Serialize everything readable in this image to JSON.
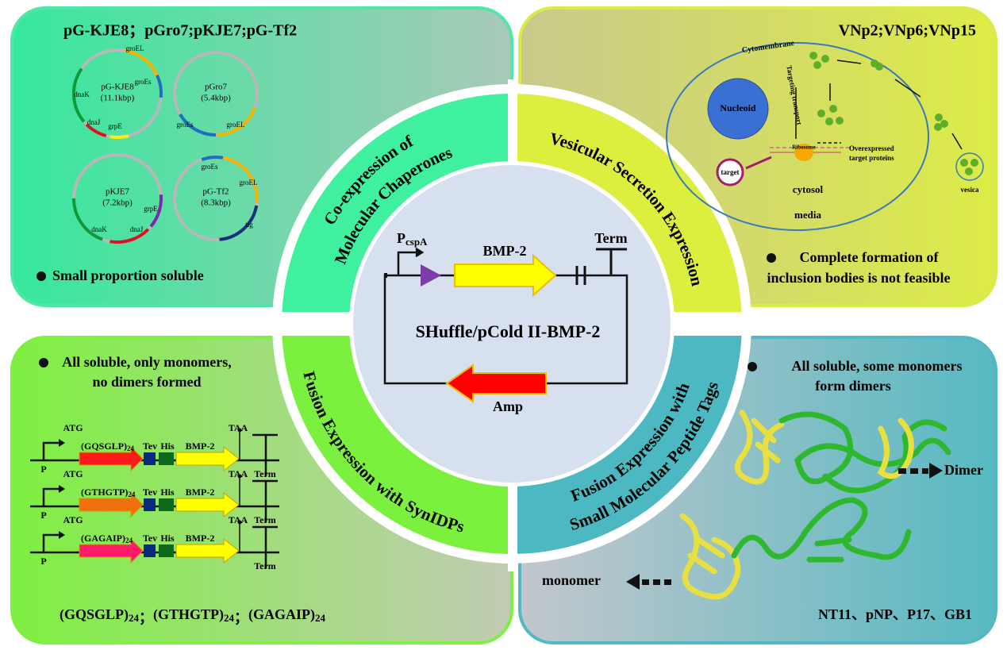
{
  "top_left": {
    "title": "pG-KJE8；pGro7;pKJE7;pG-Tf2",
    "plasmids": [
      {
        "name": "pG-KJE8",
        "size": "(11.1kbp)",
        "genes": [
          "groEL",
          "groEs",
          "dnaK",
          "dnaJ",
          "grpE"
        ]
      },
      {
        "name": "pGro7",
        "size": "(5.4kbp)",
        "genes": [
          "groEs",
          "groEL"
        ]
      },
      {
        "name": "pKJE7",
        "size": "(7.2kbp)",
        "genes": [
          "dnaK",
          "dnaJ",
          "grpE"
        ]
      },
      {
        "name": "pG-Tf2",
        "size": "(8.3kbp)",
        "genes": [
          "groEs",
          "groEL",
          "tig"
        ]
      }
    ],
    "note": "Small proportion soluble"
  },
  "top_right": {
    "title": "VNp2;VNp6;VNp15",
    "labels": {
      "membrane": "Cytomembrane",
      "nucleoid": "Nucleoid",
      "transport": "Targeting transport",
      "ribosome": "Ribosome",
      "proteins_1": "Overexpressed",
      "proteins_2": "target proteins",
      "target": "target",
      "cytosol": "cytosol",
      "media": "media",
      "vesica": "vesica"
    },
    "note_1": "Complete formation of",
    "note_2": "inclusion bodies is not feasible"
  },
  "bottom_left": {
    "note_1": "All soluble, only monomers,",
    "note_2": "no dimers formed",
    "constructs": [
      {
        "start": "ATG",
        "tag": "(GQSGLP)",
        "repeat": "24",
        "tev": "Tev",
        "his": "His",
        "gene": "BMP-2",
        "stop": "TAA",
        "promoter": "P",
        "terminator": "Term"
      },
      {
        "start": "ATG",
        "tag": "(GTHGTP)",
        "repeat": "24",
        "tev": "Tev",
        "his": "His",
        "gene": "BMP-2",
        "stop": "TAA",
        "promoter": "P",
        "terminator": "Term"
      },
      {
        "start": "ATG",
        "tag": "(GAGAIP)",
        "repeat": "24",
        "tev": "Tev",
        "his": "His",
        "gene": "BMP-2",
        "stop": "TAA",
        "promoter": "P",
        "terminator": "Term"
      }
    ],
    "footer": [
      {
        "tag": "(GQSGLP)",
        "repeat": "24"
      },
      {
        "tag": "(GTHGTP)",
        "repeat": "24"
      },
      {
        "tag": "(GAGAIP)",
        "repeat": "24"
      }
    ],
    "separator": "；"
  },
  "bottom_right": {
    "note_1": "All soluble, some monomers",
    "note_2": "form dimers",
    "dimer": "Dimer",
    "monomer": "monomer",
    "footer": "NT11、pNP、P17、GB1"
  },
  "wedges": {
    "top_left": [
      "Co-expression of",
      "Molecular Chaperones"
    ],
    "top_right": [
      "Vesicular Secretion Expression"
    ],
    "bottom_left": [
      "Fusion Expression with SynIDPs"
    ],
    "bottom_right": [
      "Fusion Expression with",
      "Small Molecular Peptide Tags"
    ]
  },
  "center": {
    "promoter": "P",
    "promoter_sub": "cspA",
    "gene": "BMP-2",
    "terminator": "Term",
    "label": "SHuffle/pCold II-BMP-2",
    "marker": "Amp"
  }
}
